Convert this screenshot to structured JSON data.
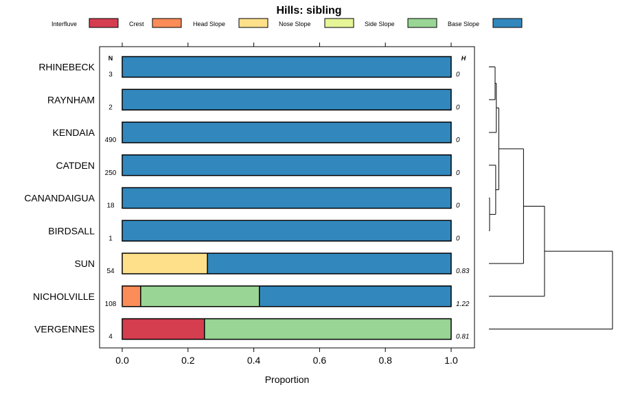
{
  "chart_data": {
    "type": "bar",
    "orientation": "horizontal",
    "stacked": true,
    "title": "Hills: sibling",
    "xlabel": "Proportion",
    "xlim": [
      0,
      1
    ],
    "xticks": [
      "0.0",
      "0.2",
      "0.4",
      "0.6",
      "0.8",
      "1.0"
    ],
    "n_header": "N",
    "h_header": "H",
    "legend": [
      {
        "name": "Interfluve",
        "color": "#d53e4f"
      },
      {
        "name": "Crest",
        "color": "#fc8d59"
      },
      {
        "name": "Head Slope",
        "color": "#fee08b"
      },
      {
        "name": "Nose Slope",
        "color": "#e6f598"
      },
      {
        "name": "Side Slope",
        "color": "#99d594"
      },
      {
        "name": "Base Slope",
        "color": "#3288bd"
      }
    ],
    "categories": [
      "RHINEBECK",
      "RAYNHAM",
      "KENDAIA",
      "CATDEN",
      "CANANDAIGUA",
      "BIRDSALL",
      "SUN",
      "NICHOLVILLE",
      "VERGENNES"
    ],
    "n": [
      "3",
      "2",
      "490",
      "250",
      "18",
      "1",
      "54",
      "108",
      "4"
    ],
    "h": [
      "0",
      "0",
      "0",
      "0",
      "0",
      "0",
      "0.83",
      "1.22",
      "0.81"
    ],
    "series": [
      {
        "name": "Interfluve",
        "values": [
          0,
          0,
          0,
          0,
          0,
          0,
          0,
          0,
          0.25
        ]
      },
      {
        "name": "Crest",
        "values": [
          0,
          0,
          0,
          0,
          0,
          0,
          0,
          0.056,
          0
        ]
      },
      {
        "name": "Head Slope",
        "values": [
          0,
          0,
          0,
          0,
          0,
          0,
          0.259,
          0,
          0
        ]
      },
      {
        "name": "Nose Slope",
        "values": [
          0,
          0,
          0,
          0,
          0,
          0,
          0,
          0,
          0
        ]
      },
      {
        "name": "Side Slope",
        "values": [
          0,
          0,
          0,
          0,
          0,
          0,
          0,
          0.361,
          0.75
        ]
      },
      {
        "name": "Base Slope",
        "values": [
          1,
          1,
          1,
          1,
          1,
          1,
          0.741,
          0.583,
          0
        ]
      }
    ],
    "dendrogram": {
      "type": "hierarchical-clustering",
      "leaf_order": [
        "RHINEBECK",
        "RAYNHAM",
        "KENDAIA",
        "CATDEN",
        "CANANDAIGUA",
        "BIRDSALL",
        "SUN",
        "NICHOLVILLE",
        "VERGENNES"
      ],
      "merges": [
        {
          "a": "CANANDAIGUA",
          "b": "BIRDSALL",
          "height": 0.0
        },
        {
          "a": "RHINEBECK",
          "b": "RAYNHAM",
          "height": 0.05
        },
        {
          "a": "m1",
          "b": "KENDAIA",
          "height": 0.06
        },
        {
          "a": "CATDEN",
          "b": "m0",
          "height": 0.055
        },
        {
          "a": "m2",
          "b": "m3",
          "height": 0.08
        },
        {
          "a": "m4",
          "b": "SUN",
          "height": 0.28
        },
        {
          "a": "m5",
          "b": "NICHOLVILLE",
          "height": 0.45
        },
        {
          "a": "m6",
          "b": "VERGENNES",
          "height": 1.0
        }
      ]
    }
  }
}
